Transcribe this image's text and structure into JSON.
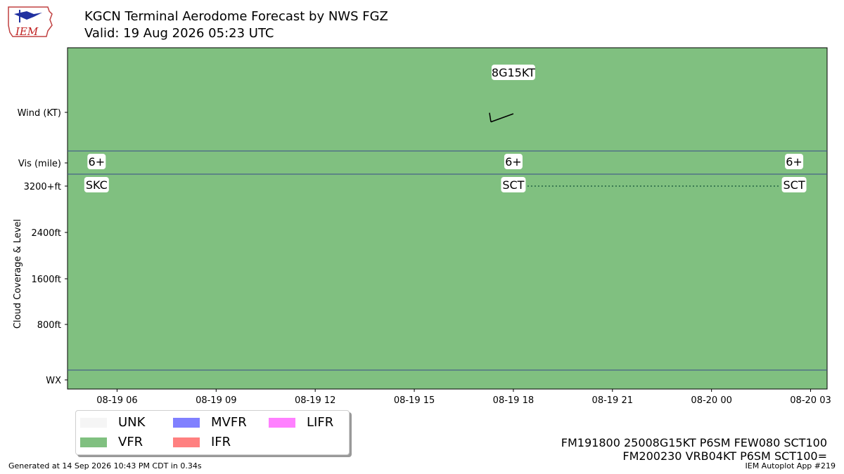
{
  "header": {
    "title": "KGCN Terminal Aerodome Forecast by NWS FGZ",
    "subtitle": "Valid: 19 Aug 2026 05:23 UTC",
    "logo_text": "IEM"
  },
  "legend": [
    {
      "label": "UNK",
      "color": "#f5f5f5"
    },
    {
      "label": "VFR",
      "color": "#80c080"
    },
    {
      "label": "MVFR",
      "color": "#8080ff"
    },
    {
      "label": "IFR",
      "color": "#ff8080"
    },
    {
      "label": "LIFR",
      "color": "#ff80ff"
    }
  ],
  "taf_lines": [
    "FM191800 25008G15KT P6SM FEW080 SCT100",
    "FM200230 VRB04KT P6SM SCT100="
  ],
  "footer": {
    "generated": "Generated at 14 Sep 2026 10:43 PM CDT in 0.34s",
    "app": "IEM Autoplot App #219"
  },
  "chart_data": {
    "type": "timeline",
    "background_category": "VFR",
    "background_color": "#80c080",
    "x_ticks": [
      "08-19 06",
      "08-19 09",
      "08-19 12",
      "08-19 15",
      "08-19 18",
      "08-19 21",
      "08-20 00",
      "08-20 03"
    ],
    "x_tick_hours": [
      6,
      9,
      12,
      15,
      18,
      21,
      24,
      27
    ],
    "x_range_hours": [
      4.5,
      27.5
    ],
    "y_rows": [
      "Wind (KT)",
      "Vis (mile)",
      "3200+ft",
      "2400ft",
      "1600ft",
      "800ft",
      "WX"
    ],
    "ylabel": "Cloud Coverage & Level",
    "forecast_hours": [
      5.38,
      18.0,
      26.5
    ],
    "visibility_labels": [
      "6+",
      "6+",
      "6+"
    ],
    "cloud_labels": [
      "SKC",
      "SCT",
      "SCT"
    ],
    "cloud_level_ft": [
      3200,
      3200,
      3200
    ],
    "wind": [
      {
        "hour": 18.0,
        "label": "8G15KT",
        "direction_deg": 250,
        "speed_kt": 8,
        "gust_kt": 15
      }
    ]
  }
}
